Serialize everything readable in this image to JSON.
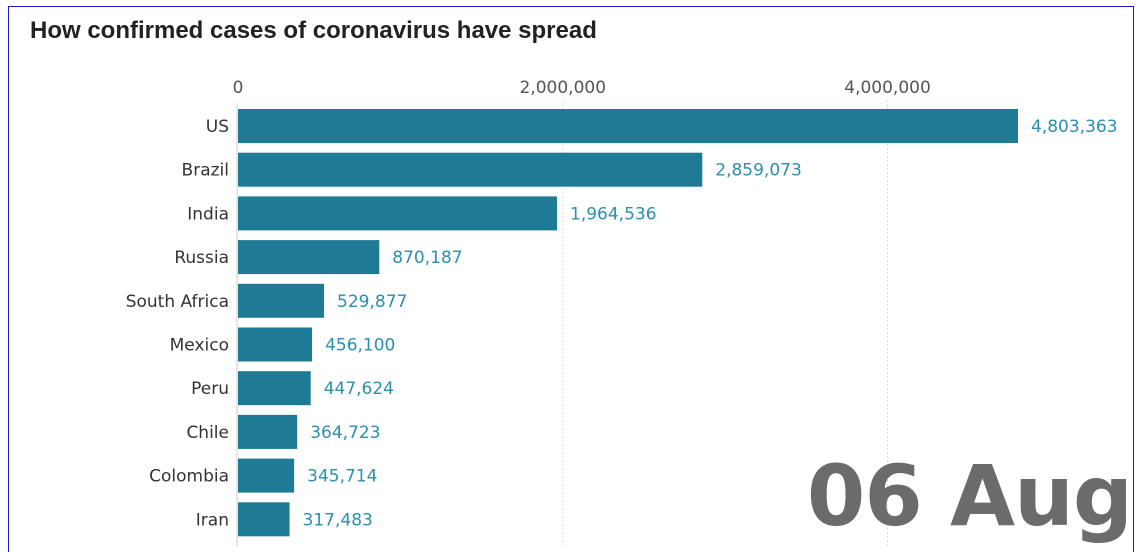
{
  "chart_data": {
    "type": "bar",
    "orientation": "horizontal",
    "title": "How confirmed cases of coronavirus have spread",
    "categories": [
      "US",
      "Brazil",
      "India",
      "Russia",
      "South Africa",
      "Mexico",
      "Peru",
      "Chile",
      "Colombia",
      "Iran"
    ],
    "values": [
      4803363,
      2859073,
      1964536,
      870187,
      529877,
      456100,
      447624,
      364723,
      345714,
      317483
    ],
    "value_labels": [
      "4,803,363",
      "2,859,073",
      "1,964,536",
      "870,187",
      "529,877",
      "456,100",
      "447,624",
      "364,723",
      "345,714",
      "317,483"
    ],
    "x_ticks": [
      0,
      2000000,
      4000000
    ],
    "x_tick_labels": [
      "0",
      "2,000,000",
      "4,000,000"
    ],
    "xlim": [
      0,
      4803363
    ],
    "grid": true,
    "xaxis_position": "top",
    "bar_color": "#1f7a96",
    "label_color": "#2a8fb0",
    "date": "06 Aug"
  }
}
